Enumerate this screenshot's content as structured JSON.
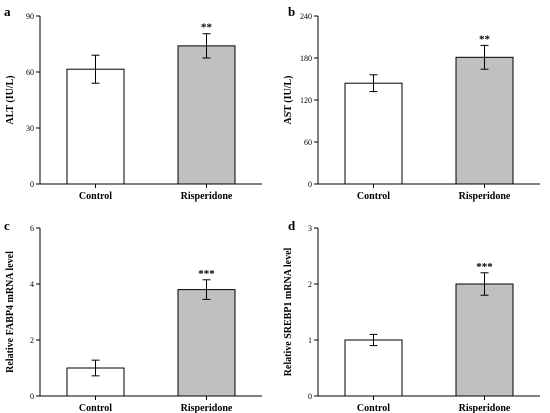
{
  "chart_data": [
    {
      "panel": "a",
      "type": "bar",
      "categories": [
        "Control",
        "Risperidone"
      ],
      "values": [
        61.5,
        74.0
      ],
      "errors": [
        7.5,
        6.5
      ],
      "significance": [
        "",
        "**"
      ],
      "ylabel": "ALT (IU/L)",
      "xlabel": "",
      "ylim": [
        0,
        90
      ],
      "yticks": [
        0,
        30,
        60,
        90
      ],
      "colors": [
        "#ffffff",
        "#c0c0c0"
      ],
      "grid": false
    },
    {
      "panel": "b",
      "type": "bar",
      "categories": [
        "Control",
        "Risperidone"
      ],
      "values": [
        144,
        181
      ],
      "errors": [
        12,
        17
      ],
      "significance": [
        "",
        "**"
      ],
      "ylabel": "AST (IU/L)",
      "xlabel": "",
      "ylim": [
        0,
        240
      ],
      "yticks": [
        0,
        60,
        120,
        180,
        240
      ],
      "colors": [
        "#ffffff",
        "#c0c0c0"
      ],
      "grid": false
    },
    {
      "panel": "c",
      "type": "bar",
      "categories": [
        "Control",
        "Risperidone"
      ],
      "values": [
        1.0,
        3.8
      ],
      "errors": [
        0.28,
        0.35
      ],
      "significance": [
        "",
        "***"
      ],
      "ylabel": "Relative FABP4 mRNA level",
      "xlabel": "",
      "ylim": [
        0,
        6
      ],
      "yticks": [
        0,
        2,
        4,
        6
      ],
      "colors": [
        "#ffffff",
        "#c0c0c0"
      ],
      "grid": false
    },
    {
      "panel": "d",
      "type": "bar",
      "categories": [
        "Control",
        "Risperidone"
      ],
      "values": [
        1.0,
        2.0
      ],
      "errors": [
        0.1,
        0.2
      ],
      "significance": [
        "",
        "***"
      ],
      "ylabel": "Relative SREBP1 mRNA level",
      "xlabel": "",
      "ylim": [
        0,
        3
      ],
      "yticks": [
        0,
        1,
        2,
        3
      ],
      "colors": [
        "#ffffff",
        "#c0c0c0"
      ],
      "grid": false
    }
  ]
}
